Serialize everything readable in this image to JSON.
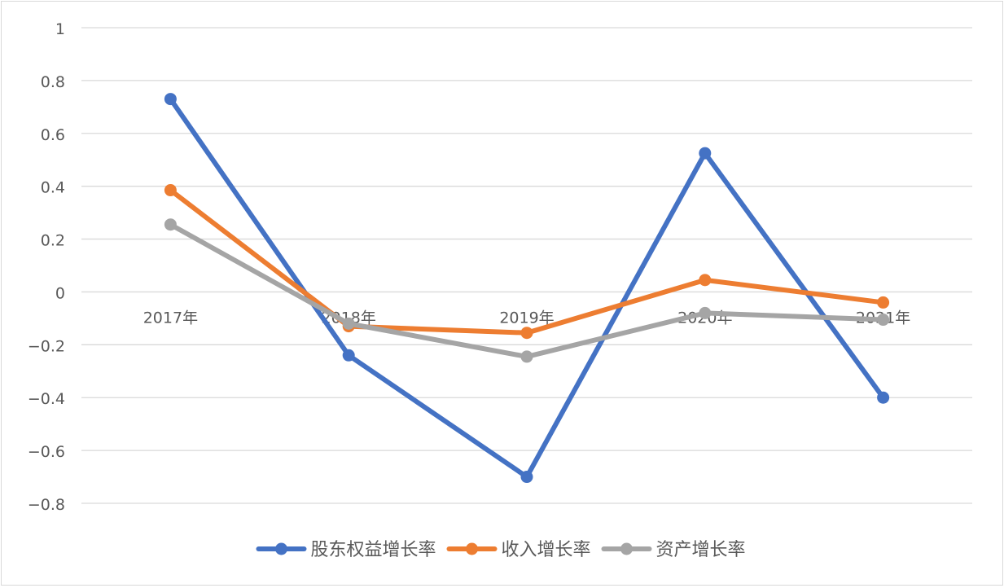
{
  "chart_data": {
    "type": "line",
    "categories": [
      "2017年",
      "2018年",
      "2019年",
      "2020年",
      "2021年"
    ],
    "series": [
      {
        "name": "股东权益增长率",
        "color": "#4472c4",
        "values": [
          0.73,
          -0.24,
          -0.7,
          0.525,
          -0.4
        ]
      },
      {
        "name": "收入增长率",
        "color": "#ed7d31",
        "values": [
          0.385,
          -0.13,
          -0.155,
          0.045,
          -0.04
        ]
      },
      {
        "name": "资产增长率",
        "color": "#a5a5a5",
        "values": [
          0.255,
          -0.12,
          -0.245,
          -0.08,
          -0.105
        ]
      }
    ],
    "yticks": [
      "1",
      "0.8",
      "0.6",
      "0.4",
      "0.2",
      "0",
      "−0.2",
      "−0.4",
      "−0.6",
      "−0.8"
    ],
    "ylim": [
      -0.8,
      1
    ],
    "grid": true,
    "legend_position": "bottom",
    "gridline_color": "#d9d9d9",
    "label_color": "#595959"
  }
}
